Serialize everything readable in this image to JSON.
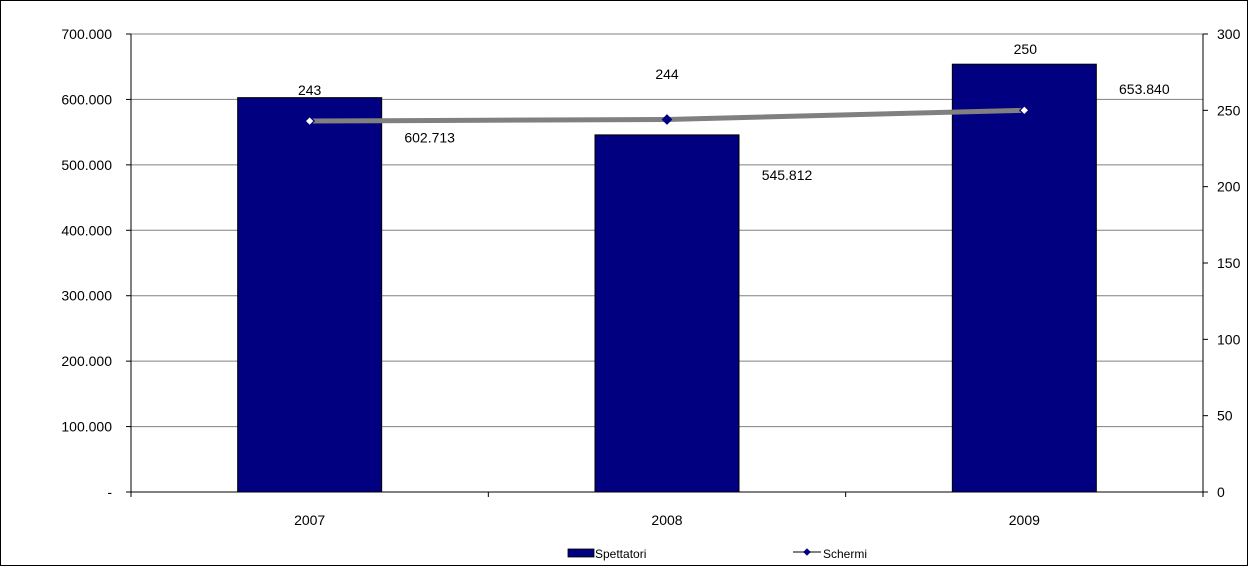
{
  "chart_data": {
    "type": "bar",
    "categories": [
      "2007",
      "2008",
      "2009"
    ],
    "series": [
      {
        "name": "Spettatori",
        "type": "bar",
        "axis": "left",
        "values": [
          602713,
          545812,
          653840
        ],
        "labels": [
          "602.713",
          "545.812",
          "653.840"
        ],
        "color": "#000080"
      },
      {
        "name": "Schermi",
        "type": "line",
        "axis": "right",
        "values": [
          243,
          244,
          250
        ],
        "labels": [
          "243",
          "244",
          "250"
        ],
        "color": "#808080",
        "marker_color": "#000080"
      }
    ],
    "y_left": {
      "range": [
        0,
        700000
      ],
      "ticks": [
        0,
        100000,
        200000,
        300000,
        400000,
        500000,
        600000,
        700000
      ],
      "tick_labels": [
        "-",
        "100.000",
        "200.000",
        "300.000",
        "400.000",
        "500.000",
        "600.000",
        "700.000"
      ]
    },
    "y_right": {
      "range": [
        0,
        300
      ],
      "ticks": [
        0,
        50,
        100,
        150,
        200,
        250,
        300
      ],
      "tick_labels": [
        "0",
        "50",
        "100",
        "150",
        "200",
        "250",
        "300"
      ]
    },
    "grid": true,
    "legend_position": "bottom"
  }
}
